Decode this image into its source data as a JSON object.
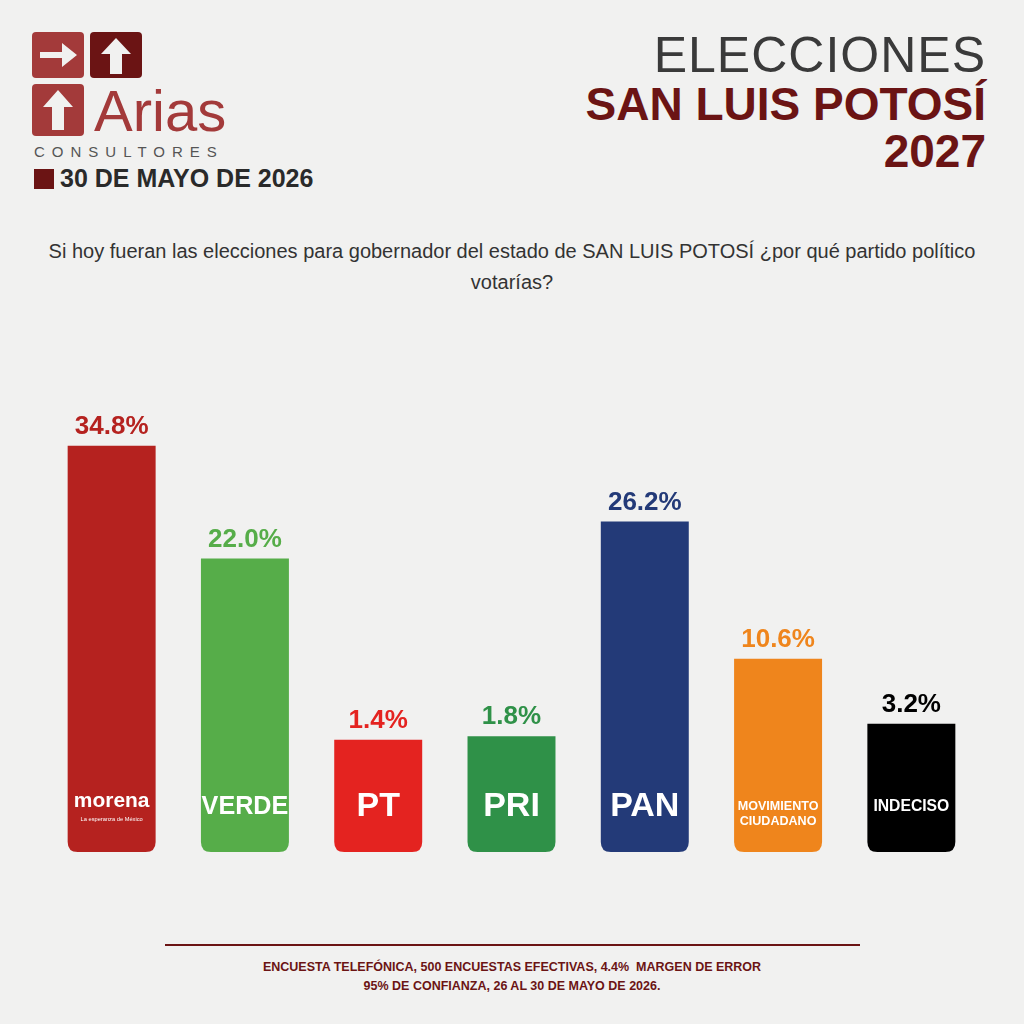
{
  "header": {
    "logo_text": "Arias",
    "logo_subtext": "CONSULTORES",
    "date": "30 DE MAYO DE 2026",
    "title_lines": [
      "ELECCIONES",
      "SAN LUIS POTOSÍ",
      "2027"
    ]
  },
  "logo_taglines": {
    "morena": "La esperanza de México"
  },
  "footer": [
    "ENCUESTA TELEFÓNICA, 500 ENCUESTAS EFECTIVAS, 4.4%  MARGEN DE ERROR",
    "95% DE CONFIANZA, 26 AL 30 DE MAYO DE 2026."
  ],
  "chart_data": {
    "type": "bar",
    "title": "Si hoy fueran las elecciones para gobernador del estado de SAN LUIS POTOSÍ ¿por qué partido político votarías?",
    "categories": [
      "morena",
      "VERDE",
      "PT",
      "PRI",
      "PAN",
      "MOVIMIENTO CIUDADANO",
      "INDECISO"
    ],
    "values": [
      34.8,
      22.0,
      1.4,
      1.8,
      26.2,
      10.6,
      3.2
    ],
    "value_labels": [
      "34.8%",
      "22.0%",
      "1.4%",
      "1.8%",
      "26.2%",
      "10.6%",
      "3.2%"
    ],
    "colors": [
      "#b5221f",
      "#56ad49",
      "#e42320",
      "#2f9148",
      "#233a78",
      "#ef851c",
      "#000000"
    ],
    "ylim": [
      0,
      40
    ],
    "grid": false,
    "tick_labels": false,
    "data_labels": true
  }
}
